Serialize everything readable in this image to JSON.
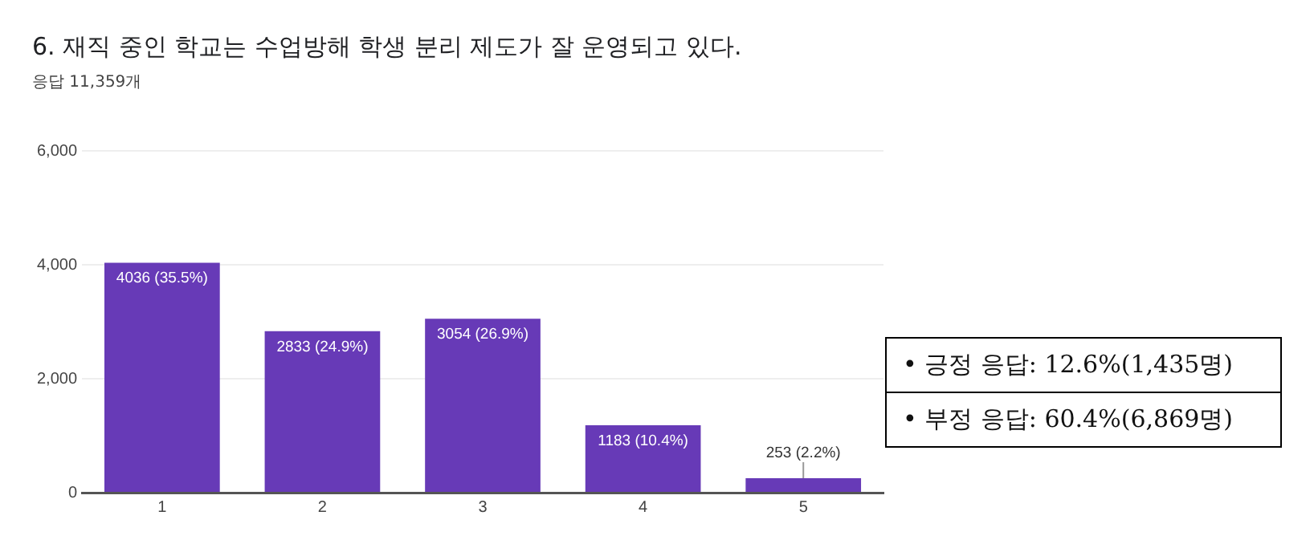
{
  "chart_data": {
    "type": "bar",
    "title": "6. 재직 중인 학교는 수업방해 학생 분리 제도가 잘 운영되고 있다.",
    "subtitle": "응답 11,359개",
    "categories": [
      "1",
      "2",
      "3",
      "4",
      "5"
    ],
    "values": [
      4036,
      2833,
      3054,
      1183,
      253
    ],
    "value_labels": [
      "4036 (35.5%)",
      "2833 (24.9%)",
      "3054 (26.9%)",
      "1183 (10.4%)",
      "253 (2.2%)"
    ],
    "color": "#673ab7",
    "ylim": [
      0,
      6000
    ],
    "yticks": [
      {
        "value": 0,
        "label": "0"
      },
      {
        "value": 2000,
        "label": "2,000"
      },
      {
        "value": 4000,
        "label": "4,000"
      },
      {
        "value": 6000,
        "label": "6,000"
      }
    ],
    "grid": "y",
    "annotations": [
      "• 긍정 응답: 12.6%(1,435명)",
      "• 부정 응답: 60.4%(6,869명)"
    ]
  }
}
